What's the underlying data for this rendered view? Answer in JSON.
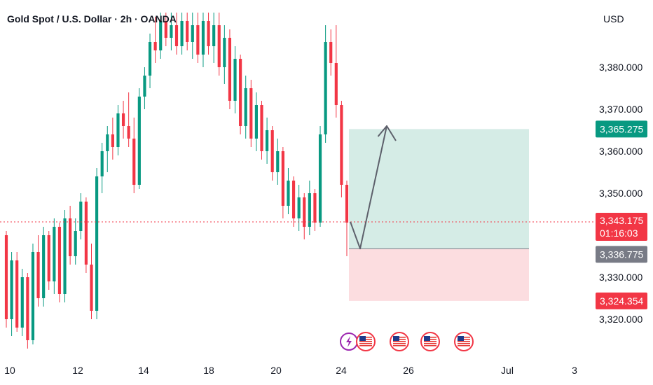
{
  "header": {
    "title": "Gold Spot / U.S. Dollar · 2h · OANDA"
  },
  "price_axis": {
    "currency": "USD"
  },
  "price_tags": {
    "target": {
      "value": "3,365.275",
      "color": "#089981"
    },
    "current": {
      "value": "3,343.175",
      "countdown": "01:16:03",
      "color": "#f23645"
    },
    "entry": {
      "value": "3,336.775",
      "color": "#787b86"
    },
    "stop": {
      "value": "3,324.354",
      "color": "#f23645"
    }
  },
  "event_icons": [
    {
      "icon": "lightning-icon",
      "color": "#9c27b0"
    },
    {
      "icon": "us-flag-icon"
    },
    {
      "icon": "us-flag-icon"
    },
    {
      "icon": "us-flag-icon"
    },
    {
      "icon": "us-flag-icon"
    }
  ],
  "chart_data": {
    "type": "candlestick",
    "title": "Gold Spot / U.S. Dollar · 2h · OANDA",
    "y_ticks": [
      "3,320.000",
      "3,330.000",
      "3,340.000",
      "3,350.000",
      "3,360.000",
      "3,370.000",
      "3,380.000"
    ],
    "y_tick_values": [
      3320,
      3330,
      3340,
      3350,
      3360,
      3370,
      3380
    ],
    "ylim": [
      3313.5,
      3393
    ],
    "x_ticks": [
      "10",
      "12",
      "14",
      "18",
      "20",
      "24",
      "26",
      "Jul",
      "3"
    ],
    "colors": {
      "up": "#089981",
      "down": "#f23645",
      "profit_zone": "#d5ece6",
      "loss_zone": "#fcdde0"
    },
    "long_position": {
      "entry": 3336.775,
      "target": 3365.275,
      "stop": 3324.354
    },
    "current_price": 3343.175,
    "projection_path": [
      3343.2,
      3336.8,
      3366.0,
      3362.5
    ],
    "candles": [
      [
        3340,
        3341,
        3318,
        3320
      ],
      [
        3320,
        3336,
        3316,
        3334
      ],
      [
        3334,
        3336,
        3317,
        3318
      ],
      [
        3318,
        3332,
        3316,
        3330
      ],
      [
        3330,
        3331,
        3313,
        3315
      ],
      [
        3315,
        3338,
        3314,
        3336
      ],
      [
        3336,
        3340,
        3323,
        3325
      ],
      [
        3325,
        3342,
        3323,
        3340
      ],
      [
        3340,
        3341,
        3327,
        3329
      ],
      [
        3329,
        3344,
        3326,
        3342
      ],
      [
        3342,
        3343,
        3324,
        3326
      ],
      [
        3326,
        3346,
        3324,
        3344
      ],
      [
        3344,
        3347,
        3333,
        3335
      ],
      [
        3335,
        3344,
        3333,
        3341
      ],
      [
        3341,
        3350,
        3339,
        3348
      ],
      [
        3348,
        3349,
        3331,
        3333
      ],
      [
        3333,
        3338,
        3320,
        3322
      ],
      [
        3322,
        3356,
        3320,
        3354
      ],
      [
        3354,
        3362,
        3350,
        3360
      ],
      [
        3360,
        3366,
        3355,
        3364
      ],
      [
        3364,
        3368,
        3358,
        3361
      ],
      [
        3361,
        3371,
        3359,
        3369
      ],
      [
        3369,
        3372,
        3363,
        3366
      ],
      [
        3366,
        3374,
        3361,
        3363
      ],
      [
        3363,
        3368,
        3350,
        3352
      ],
      [
        3352,
        3375,
        3351,
        3373
      ],
      [
        3373,
        3380,
        3370,
        3378
      ],
      [
        3378,
        3388,
        3375,
        3386
      ],
      [
        3386,
        3392,
        3381,
        3384
      ],
      [
        3384,
        3393,
        3382,
        3391
      ],
      [
        3391,
        3393,
        3385,
        3387
      ],
      [
        3387,
        3393,
        3384,
        3390
      ],
      [
        3390,
        3393,
        3383,
        3385
      ],
      [
        3385,
        3393,
        3383,
        3391
      ],
      [
        3391,
        3393,
        3384,
        3386
      ],
      [
        3386,
        3393,
        3382,
        3390
      ],
      [
        3390,
        3393,
        3381,
        3383
      ],
      [
        3383,
        3393,
        3380,
        3391
      ],
      [
        3391,
        3393,
        3383,
        3385
      ],
      [
        3385,
        3393,
        3381,
        3390
      ],
      [
        3390,
        3393,
        3378,
        3380
      ],
      [
        3380,
        3390,
        3376,
        3387
      ],
      [
        3387,
        3389,
        3370,
        3372
      ],
      [
        3372,
        3385,
        3369,
        3382
      ],
      [
        3382,
        3383,
        3364,
        3366
      ],
      [
        3366,
        3378,
        3363,
        3375
      ],
      [
        3375,
        3377,
        3361,
        3363
      ],
      [
        3363,
        3374,
        3360,
        3371
      ],
      [
        3371,
        3372,
        3358,
        3360
      ],
      [
        3360,
        3368,
        3357,
        3365
      ],
      [
        3365,
        3366,
        3353,
        3355
      ],
      [
        3355,
        3363,
        3352,
        3360
      ],
      [
        3360,
        3361,
        3344,
        3347
      ],
      [
        3347,
        3356,
        3345,
        3353
      ],
      [
        3353,
        3354,
        3342,
        3344
      ],
      [
        3344,
        3352,
        3341,
        3349
      ],
      [
        3349,
        3350,
        3339,
        3342
      ],
      [
        3342,
        3353,
        3340,
        3350
      ],
      [
        3350,
        3351,
        3341,
        3343
      ],
      [
        3343,
        3366,
        3342,
        3364
      ],
      [
        3364,
        3390,
        3362,
        3386
      ],
      [
        3386,
        3389,
        3378,
        3381
      ],
      [
        3381,
        3390,
        3368,
        3371
      ],
      [
        3371,
        3372,
        3349,
        3352
      ],
      [
        3352,
        3353,
        3335,
        3343
      ]
    ]
  }
}
